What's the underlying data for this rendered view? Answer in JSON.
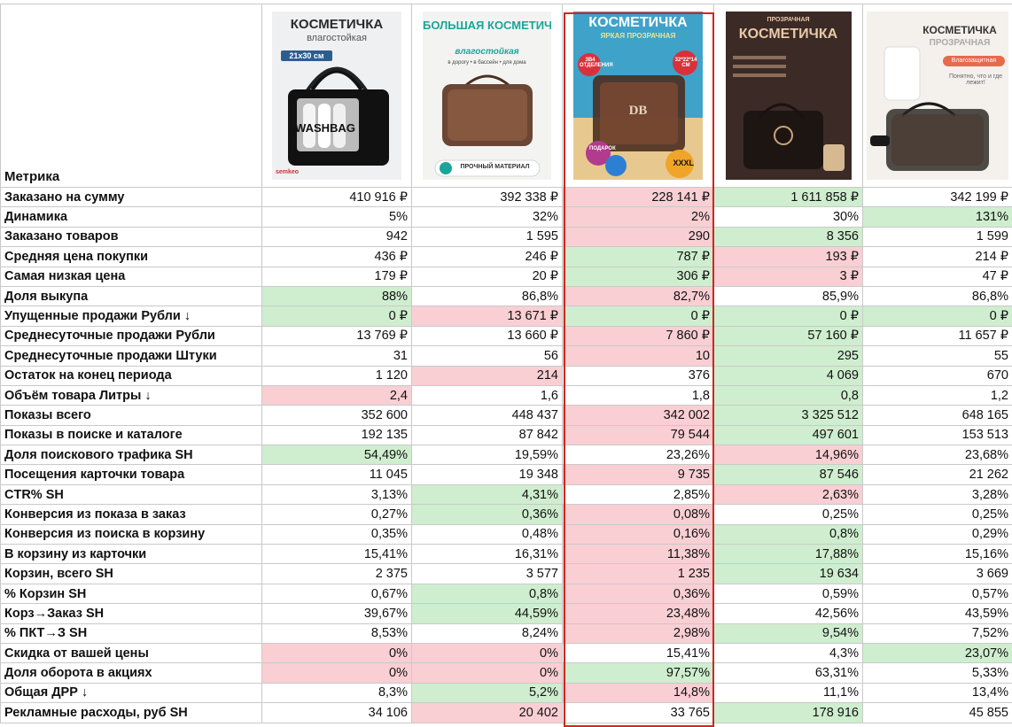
{
  "header_label": "Метрика",
  "products": [
    {
      "title": "КОСМЕТИЧКА",
      "subtitle": "влагостойкая",
      "size_badge": "21x30 см",
      "bag_label": "WASHBAG",
      "brand": "semkeo",
      "bg": "#eef0f2",
      "title_color": "#2a2a2a"
    },
    {
      "title": "БОЛЬШАЯ КОСМЕТИЧКА",
      "subtitle": "влагостойкая",
      "features": "в дорогу • в бассейн • для дома",
      "footer": "ПРОЧНЫЙ МАТЕРИАЛ",
      "bg": "#f3f4f2",
      "title_color": "#1aa59a"
    },
    {
      "title": "КОСМЕТИЧКА",
      "subtitle": "ЯРКАЯ ПРОЗРАЧНАЯ",
      "badge_left": "3В4 ОТДЕЛЕНИЯ",
      "badge_right": "32*22*14 СМ",
      "gift": "ПОДАРОК",
      "size_tag": "XXXL",
      "monogram": "DB",
      "bg": "#3fa2c9",
      "title_color": "#ffffff"
    },
    {
      "title": "КОСМЕТИЧКА",
      "subtitle": "ПРОЗРАЧНАЯ",
      "bg": "#3b2a26",
      "title_color": "#e9c9a8"
    },
    {
      "title": "КОСМЕТИЧКА",
      "subtitle": "ПРОЗРАЧНАЯ",
      "tag": "Влагозащитная",
      "note": "Понятно, что и где лежит!",
      "bg": "#f4f0ec",
      "title_color": "#333333"
    }
  ],
  "rows": [
    {
      "label": "Заказано на сумму",
      "values": [
        "410 916 ₽",
        "392 338 ₽",
        "228 141 ₽",
        "1 611 858 ₽",
        "342 199 ₽"
      ],
      "colors": [
        "",
        "",
        "r",
        "g",
        ""
      ]
    },
    {
      "label": "Динамика",
      "values": [
        "5%",
        "32%",
        "2%",
        "30%",
        "131%"
      ],
      "colors": [
        "",
        "",
        "r",
        "",
        "g"
      ]
    },
    {
      "label": "Заказано товаров",
      "values": [
        "942",
        "1 595",
        "290",
        "8 356",
        "1 599"
      ],
      "colors": [
        "",
        "",
        "r",
        "g",
        ""
      ]
    },
    {
      "label": "Средняя цена покупки",
      "values": [
        "436 ₽",
        "246 ₽",
        "787 ₽",
        "193 ₽",
        "214 ₽"
      ],
      "colors": [
        "",
        "",
        "g",
        "r",
        ""
      ]
    },
    {
      "label": "Самая низкая цена",
      "values": [
        "179 ₽",
        "20 ₽",
        "306 ₽",
        "3 ₽",
        "47 ₽"
      ],
      "colors": [
        "",
        "",
        "g",
        "r",
        ""
      ]
    },
    {
      "label": "Доля выкупа",
      "values": [
        "88%",
        "86,8%",
        "82,7%",
        "85,9%",
        "86,8%"
      ],
      "colors": [
        "g",
        "",
        "r",
        "",
        ""
      ]
    },
    {
      "label": "Упущенные продажи Рубли ↓",
      "values": [
        "0 ₽",
        "13 671 ₽",
        "0 ₽",
        "0 ₽",
        "0 ₽"
      ],
      "colors": [
        "g",
        "r",
        "g",
        "g",
        "g"
      ]
    },
    {
      "label": "Среднесуточные продажи Рубли",
      "values": [
        "13 769 ₽",
        "13 660 ₽",
        "7 860 ₽",
        "57 160 ₽",
        "11 657 ₽"
      ],
      "colors": [
        "",
        "",
        "r",
        "g",
        ""
      ]
    },
    {
      "label": "Среднесуточные продажи Штуки",
      "values": [
        "31",
        "56",
        "10",
        "295",
        "55"
      ],
      "colors": [
        "",
        "",
        "r",
        "g",
        ""
      ]
    },
    {
      "label": "Остаток на конец периода",
      "values": [
        "1 120",
        "214",
        "376",
        "4 069",
        "670"
      ],
      "colors": [
        "",
        "r",
        "",
        "g",
        ""
      ]
    },
    {
      "label": "Объём товара Литры ↓",
      "values": [
        "2,4",
        "1,6",
        "1,8",
        "0,8",
        "1,2"
      ],
      "colors": [
        "r",
        "",
        "",
        "g",
        ""
      ]
    },
    {
      "label": "Показы всего",
      "values": [
        "352 600",
        "448 437",
        "342 002",
        "3 325 512",
        "648 165"
      ],
      "colors": [
        "",
        "",
        "r",
        "g",
        ""
      ]
    },
    {
      "label": "Показы в поиске и каталоге",
      "values": [
        "192 135",
        "87 842",
        "79 544",
        "497 601",
        "153 513"
      ],
      "colors": [
        "",
        "",
        "r",
        "g",
        ""
      ]
    },
    {
      "label": "Доля поискового трафика SH",
      "values": [
        "54,49%",
        "19,59%",
        "23,26%",
        "14,96%",
        "23,68%"
      ],
      "colors": [
        "g",
        "",
        "",
        "r",
        ""
      ]
    },
    {
      "label": "Посещения карточки товара",
      "values": [
        "11 045",
        "19 348",
        "9 735",
        "87 546",
        "21 262"
      ],
      "colors": [
        "",
        "",
        "r",
        "g",
        ""
      ]
    },
    {
      "label": "CTR% SH",
      "values": [
        "3,13%",
        "4,31%",
        "2,85%",
        "2,63%",
        "3,28%"
      ],
      "colors": [
        "",
        "g",
        "",
        "r",
        ""
      ]
    },
    {
      "label": "Конверсия из показа в заказ",
      "values": [
        "0,27%",
        "0,36%",
        "0,08%",
        "0,25%",
        "0,25%"
      ],
      "colors": [
        "",
        "g",
        "r",
        "",
        ""
      ]
    },
    {
      "label": "Конверсия из поиска в корзину",
      "values": [
        "0,35%",
        "0,48%",
        "0,16%",
        "0,8%",
        "0,29%"
      ],
      "colors": [
        "",
        "",
        "r",
        "g",
        ""
      ]
    },
    {
      "label": "В корзину из карточки",
      "values": [
        "15,41%",
        "16,31%",
        "11,38%",
        "17,88%",
        "15,16%"
      ],
      "colors": [
        "",
        "",
        "r",
        "g",
        ""
      ]
    },
    {
      "label": "Корзин, всего SH",
      "values": [
        "2 375",
        "3 577",
        "1 235",
        "19 634",
        "3 669"
      ],
      "colors": [
        "",
        "",
        "r",
        "g",
        ""
      ]
    },
    {
      "label": "% Корзин SH",
      "values": [
        "0,67%",
        "0,8%",
        "0,36%",
        "0,59%",
        "0,57%"
      ],
      "colors": [
        "",
        "g",
        "r",
        "",
        ""
      ]
    },
    {
      "label": "Корз→Заказ SH",
      "values": [
        "39,67%",
        "44,59%",
        "23,48%",
        "42,56%",
        "43,59%"
      ],
      "colors": [
        "",
        "g",
        "r",
        "",
        ""
      ]
    },
    {
      "label": "% ПКТ→З SH",
      "values": [
        "8,53%",
        "8,24%",
        "2,98%",
        "9,54%",
        "7,52%"
      ],
      "colors": [
        "",
        "",
        "r",
        "g",
        ""
      ]
    },
    {
      "label": "Скидка от вашей цены",
      "values": [
        "0%",
        "0%",
        "15,41%",
        "4,3%",
        "23,07%"
      ],
      "colors": [
        "r",
        "r",
        "",
        "",
        "g"
      ]
    },
    {
      "label": "Доля оборота в акциях",
      "values": [
        "0%",
        "0%",
        "97,57%",
        "63,31%",
        "5,33%"
      ],
      "colors": [
        "r",
        "r",
        "g",
        "",
        ""
      ]
    },
    {
      "label": "Общая ДРР ↓",
      "values": [
        "8,3%",
        "5,2%",
        "14,8%",
        "11,1%",
        "13,4%"
      ],
      "colors": [
        "",
        "g",
        "r",
        "",
        ""
      ]
    },
    {
      "label": "Рекламные расходы, руб SH",
      "values": [
        "34 106",
        "20 402",
        "33 765",
        "178 916",
        "45 855"
      ],
      "colors": [
        "",
        "r",
        "",
        "g",
        ""
      ]
    }
  ]
}
